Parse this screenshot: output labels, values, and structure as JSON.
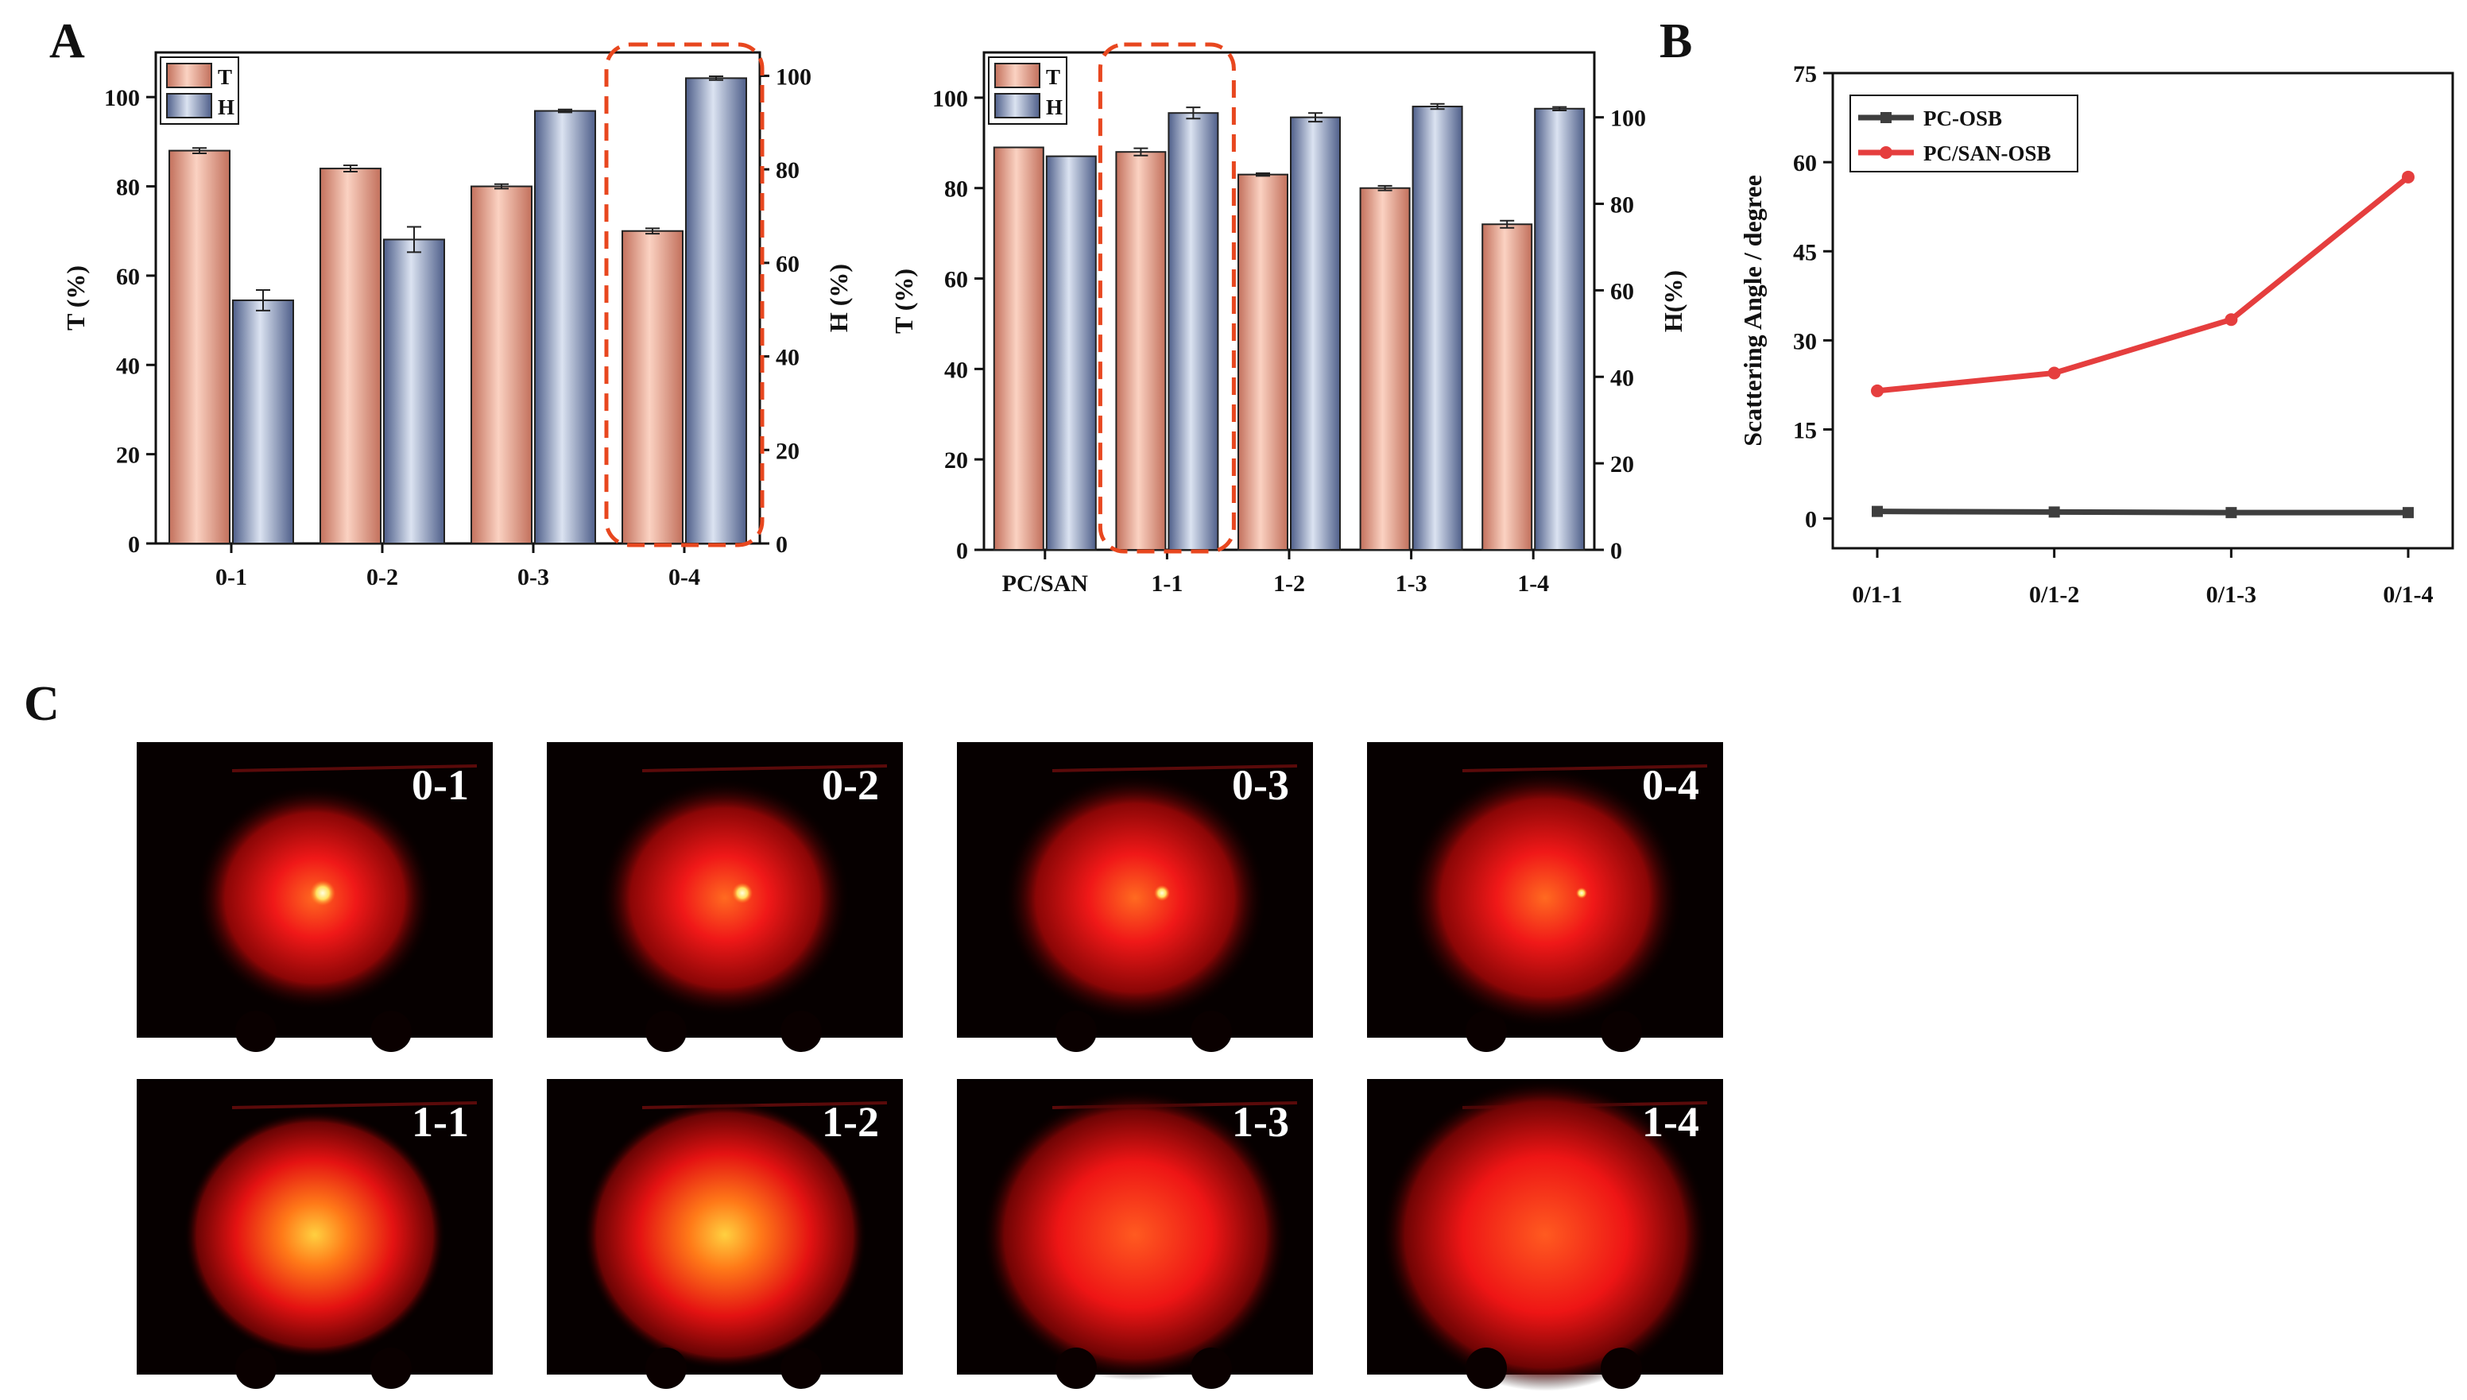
{
  "panels": {
    "A": "A",
    "B": "B",
    "C": "C"
  },
  "colors": {
    "T_light": "#fbd2c2",
    "T_dark": "#c2705c",
    "H_light": "#dbe3f1",
    "H_dark": "#4f5f8a",
    "highlight": "#e8471f",
    "pc_osb": "#3e3e3e",
    "pc_san_osb": "#e53e3e"
  },
  "chart_data": [
    {
      "type": "bar",
      "categories": [
        "0-1",
        "0-2",
        "0-3",
        "0-4"
      ],
      "series": [
        {
          "name": "T",
          "axis": "left",
          "values": [
            88,
            84,
            80,
            70
          ],
          "errors": [
            0.6,
            0.7,
            0.5,
            0.6
          ]
        },
        {
          "name": "H",
          "axis": "right",
          "values": [
            52,
            65,
            92.5,
            99.5
          ],
          "errors": [
            2.2,
            2.7,
            0.3,
            0.4
          ]
        }
      ],
      "ylabel": "T (%)",
      "ylim": [
        0,
        110
      ],
      "yticks": [
        0,
        20,
        40,
        60,
        80,
        100
      ],
      "y2label": "H (%)",
      "y2lim": [
        0,
        105
      ],
      "y2ticks": [
        0,
        20,
        40,
        60,
        80,
        100
      ],
      "legend": [
        "T",
        "H"
      ],
      "legend_position": "top-left",
      "highlight_category": "0-4"
    },
    {
      "type": "bar",
      "categories": [
        "PC/SAN",
        "1-1",
        "1-2",
        "1-3",
        "1-4"
      ],
      "series": [
        {
          "name": "T",
          "axis": "left",
          "values": [
            89,
            88,
            83,
            80,
            72
          ],
          "errors": [
            0,
            0.8,
            0.3,
            0.5,
            0.8
          ]
        },
        {
          "name": "H",
          "axis": "right",
          "values": [
            91,
            101,
            100,
            102.5,
            102
          ],
          "errors": [
            0,
            1.3,
            1.0,
            0.6,
            0.4
          ]
        }
      ],
      "ylabel": "T (%)",
      "ylim": [
        0,
        110
      ],
      "yticks": [
        0,
        20,
        40,
        60,
        80,
        100
      ],
      "y2label": "H(%)",
      "y2lim": [
        0,
        115
      ],
      "y2ticks": [
        0,
        20,
        40,
        60,
        80,
        100
      ],
      "legend": [
        "T",
        "H"
      ],
      "legend_position": "top-left",
      "highlight_category": "1-1"
    },
    {
      "type": "line",
      "x": [
        "0/1-1",
        "0/1-2",
        "0/1-3",
        "0/1-4"
      ],
      "series": [
        {
          "name": "PC-OSB",
          "values": [
            1.2,
            1.1,
            1.0,
            1.0
          ]
        },
        {
          "name": "PC/SAN-OSB",
          "values": [
            21.5,
            24.5,
            33.5,
            57.5
          ]
        }
      ],
      "ylabel": "Scattering Angle / degree",
      "ylim": [
        -5,
        75
      ],
      "yticks": [
        0,
        15,
        30,
        45,
        60,
        75
      ],
      "legend_position": "top-left"
    }
  ],
  "photos": {
    "row1": [
      "0-1",
      "0-2",
      "0-3",
      "0-4"
    ],
    "row2": [
      "1-1",
      "1-2",
      "1-3",
      "1-4"
    ]
  }
}
